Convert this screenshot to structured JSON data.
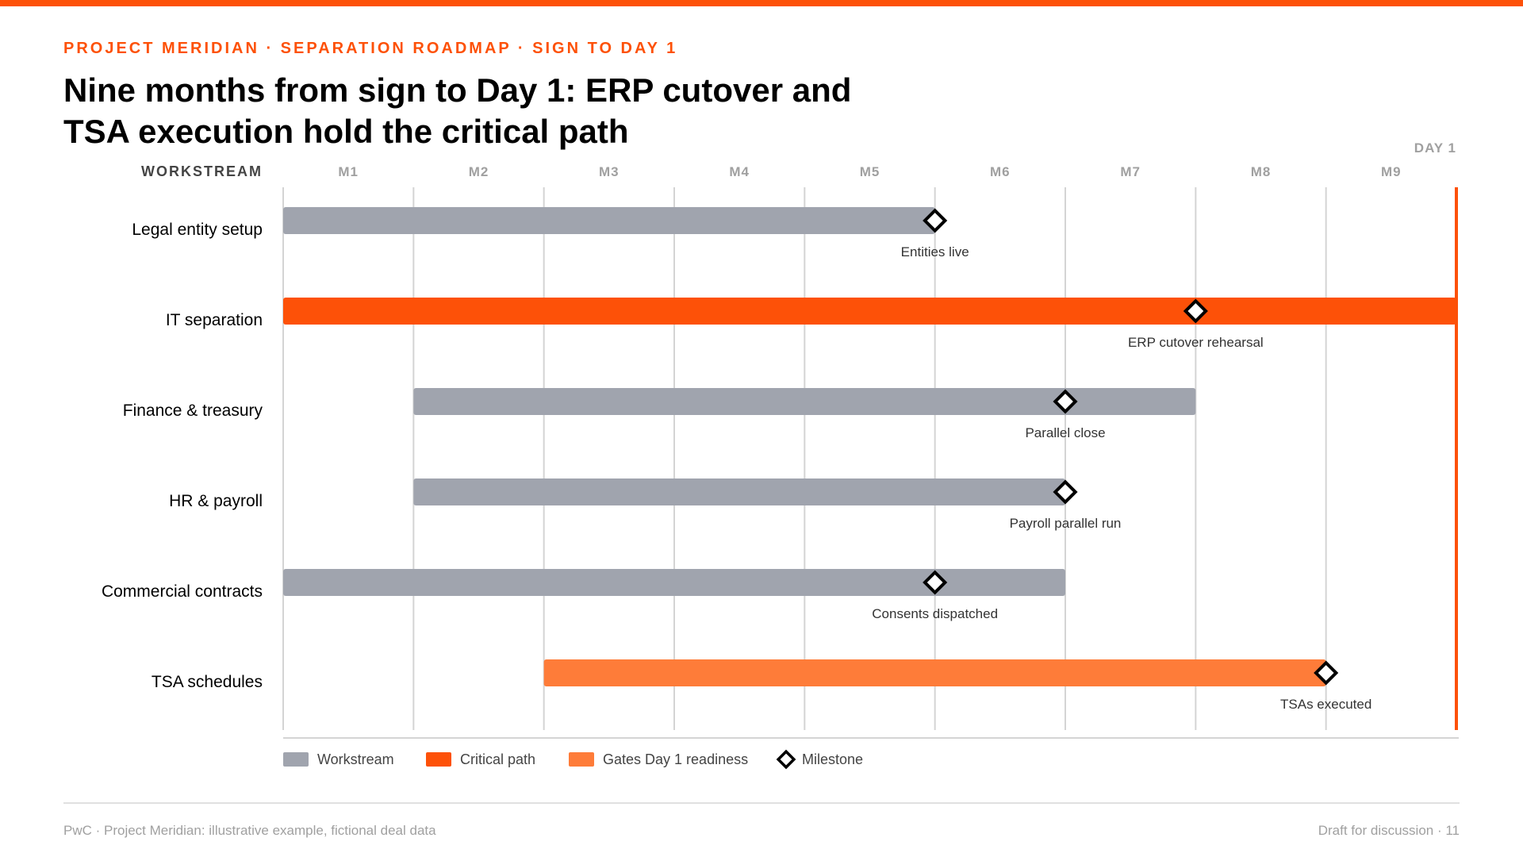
{
  "header": {
    "eyebrow": "PROJECT MERIDIAN · SEPARATION ROADMAP · SIGN TO DAY 1",
    "title": "Nine months from sign to Day 1: ERP cutover and TSA execution hold the critical path"
  },
  "chart_data": {
    "type": "gantt",
    "column_header": "WORKSTREAM",
    "months": [
      "M1",
      "M2",
      "M3",
      "M4",
      "M5",
      "M6",
      "M7",
      "M8",
      "M9"
    ],
    "xlim": [
      0,
      9
    ],
    "day1": {
      "label": "DAY 1",
      "month": 9
    },
    "workstreams": [
      {
        "name": "Legal entity setup",
        "start": 0,
        "end": 5,
        "kind": "workstream",
        "milestone": {
          "at": 5,
          "label": "Entities live"
        }
      },
      {
        "name": "IT separation",
        "start": 0,
        "end": 9,
        "kind": "critical",
        "milestone": {
          "at": 7,
          "label": "ERP cutover rehearsal"
        }
      },
      {
        "name": "Finance & treasury",
        "start": 1,
        "end": 7,
        "kind": "workstream",
        "milestone": {
          "at": 6,
          "label": "Parallel close"
        }
      },
      {
        "name": "HR & payroll",
        "start": 1,
        "end": 6,
        "kind": "workstream",
        "milestone": {
          "at": 6,
          "label": "Payroll parallel run"
        }
      },
      {
        "name": "Commercial contracts",
        "start": 0,
        "end": 6,
        "kind": "workstream",
        "milestone": {
          "at": 5,
          "label": "Consents dispatched"
        }
      },
      {
        "name": "TSA schedules",
        "start": 2,
        "end": 8,
        "kind": "gates",
        "milestone": {
          "at": 8,
          "label": "TSAs executed"
        }
      }
    ],
    "legend": [
      {
        "kind": "workstream",
        "label": "Workstream"
      },
      {
        "kind": "critical",
        "label": "Critical path"
      },
      {
        "kind": "gates",
        "label": "Gates Day 1 readiness"
      },
      {
        "kind": "milestone",
        "label": "Milestone"
      }
    ],
    "colors": {
      "workstream": "#A0A4AE",
      "critical": "#FD5108",
      "gates": "#FE7C39",
      "milestone": "#000000",
      "day1": "#FD5108",
      "grid": "#D4D4D4"
    }
  },
  "footer": {
    "left": "PwC · Project Meridian: illustrative example, fictional deal data",
    "right": "Draft for discussion · 11"
  }
}
